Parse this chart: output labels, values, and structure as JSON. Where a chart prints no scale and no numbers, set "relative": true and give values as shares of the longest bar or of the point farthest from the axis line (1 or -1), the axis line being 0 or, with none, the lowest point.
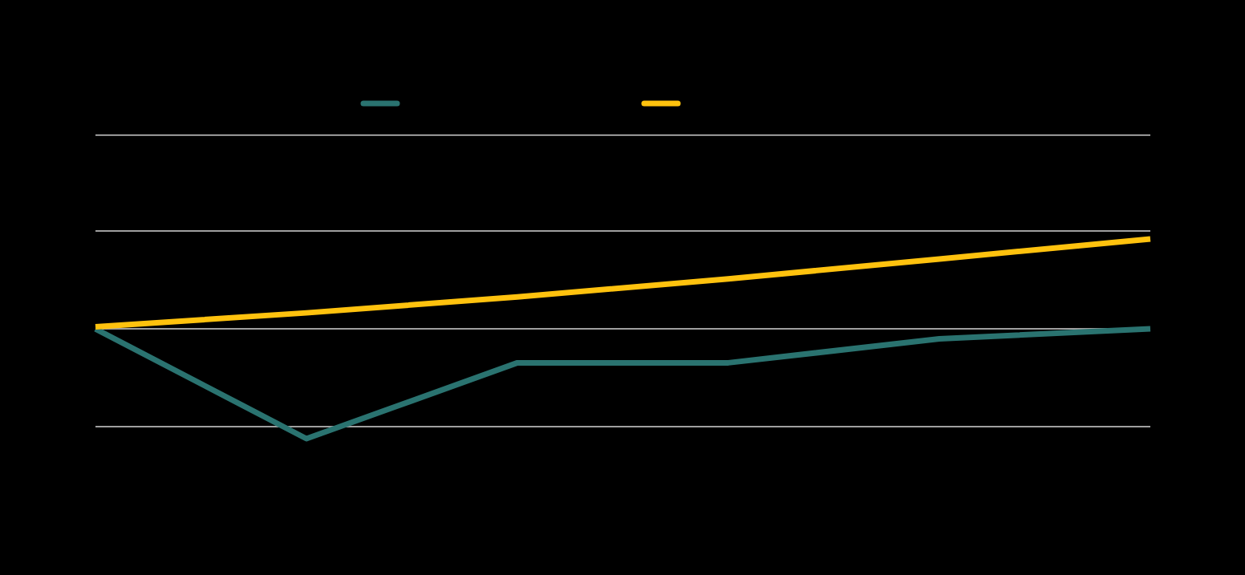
{
  "chart_data": {
    "type": "line",
    "relative": true,
    "categories": [
      null,
      null,
      null,
      null,
      null,
      null
    ],
    "series": [
      {
        "color": "#2a7370",
        "values": [
          0.55,
          0,
          0.38,
          0.38,
          0.5,
          0.55
        ]
      },
      {
        "color": "#ffc20e",
        "values": [
          0.56,
          0.63,
          0.71,
          0.8,
          0.9,
          1
        ]
      }
    ],
    "ref_lines": [
      {
        "axis": "y",
        "value": 1.52,
        "color": "#d4d4d4"
      },
      {
        "axis": "y",
        "value": 1.04,
        "color": "#d4d4d4"
      },
      {
        "axis": "y",
        "value": 0.55,
        "color": "#d4d4d4"
      },
      {
        "axis": "y",
        "value": 0.06,
        "color": "#d4d4d4"
      }
    ],
    "marker": "none",
    "line_style": "solid"
  }
}
